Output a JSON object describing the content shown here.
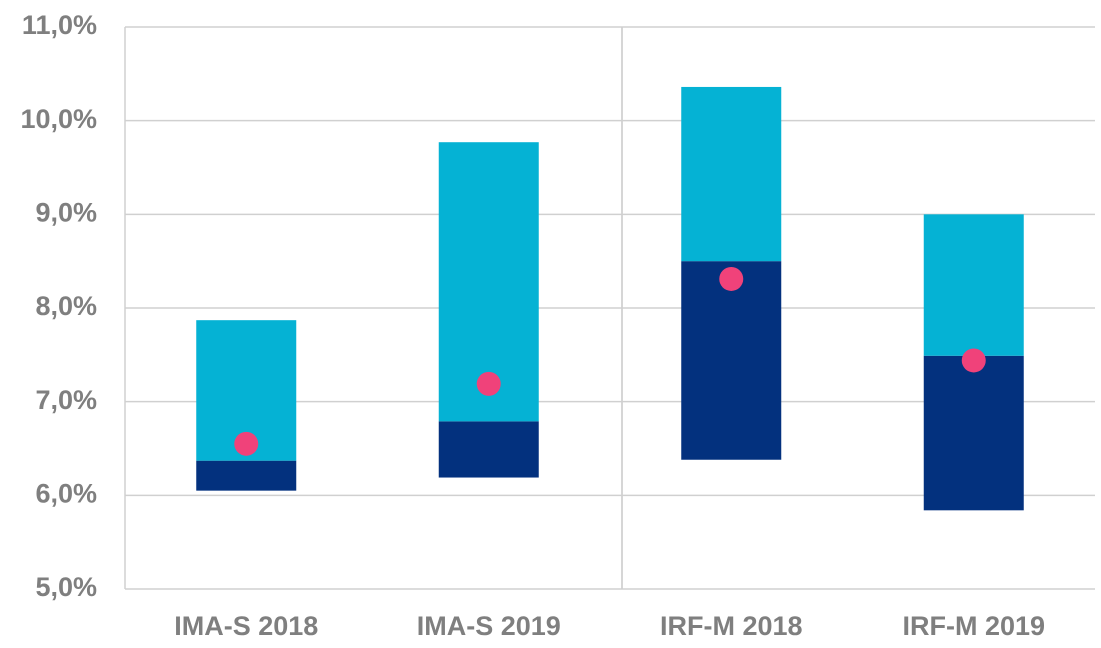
{
  "chart_data": {
    "type": "floating_bar",
    "categories": [
      "IMA-S 2018",
      "IMA-S 2019",
      "IRF-M 2018",
      "IRF-M 2019"
    ],
    "series": [
      {
        "color": "transparent",
        "values": [
          6.05,
          6.19,
          6.38,
          5.84
        ]
      },
      {
        "color": "#03317e",
        "values": [
          0.32,
          0.6,
          2.12,
          1.65
        ]
      },
      {
        "color": "#05b2d4",
        "values": [
          1.5,
          2.98,
          1.86,
          1.51
        ]
      }
    ],
    "markers": {
      "color": "#f0427a",
      "values": [
        6.55,
        7.19,
        8.31,
        7.44
      ]
    },
    "ylim": [
      5,
      11
    ],
    "yticks": [
      {
        "value": 5,
        "label": "5,0%"
      },
      {
        "value": 6,
        "label": "6,0%"
      },
      {
        "value": 7,
        "label": "7,0%"
      },
      {
        "value": 8,
        "label": "8,0%"
      },
      {
        "value": 9,
        "label": "9,0%"
      },
      {
        "value": 10,
        "label": "10,0%"
      },
      {
        "value": 11,
        "label": "11,0%"
      }
    ],
    "grid": true
  }
}
